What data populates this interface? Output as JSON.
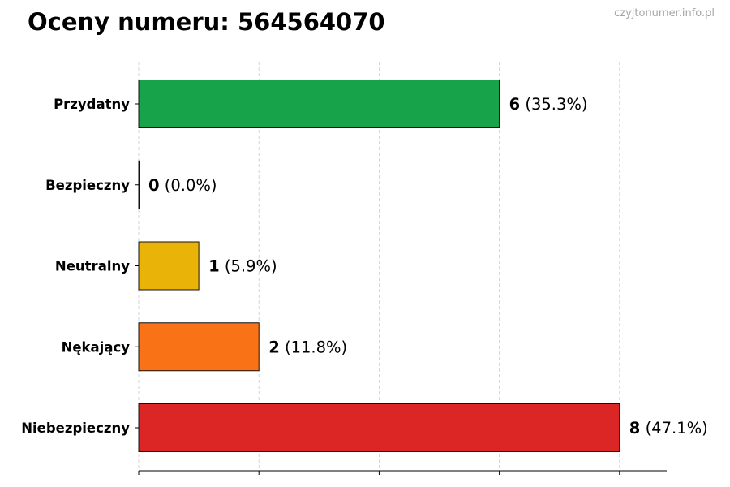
{
  "chart_title": "Oceny numeru: 564564070",
  "watermark": "czyjtonumer.info.pl",
  "chart_data": {
    "type": "bar",
    "orientation": "horizontal",
    "title": "Oceny numeru: 564564070",
    "xlabel": "",
    "ylabel": "",
    "categories": [
      "Przydatny",
      "Bezpieczny",
      "Neutralny",
      "Nękający",
      "Niebezpieczny"
    ],
    "values": [
      6,
      0,
      1,
      2,
      8
    ],
    "percent_labels": [
      "(35.3%)",
      "(0.0%)",
      "(5.9%)",
      "(11.8%)",
      "(47.1%)"
    ],
    "colors": [
      "#16a34a",
      "#16a34a",
      "#eab308",
      "#f97316",
      "#dc2626"
    ],
    "xlim": [
      0,
      8.8
    ],
    "x_ticks": [
      0,
      2,
      4,
      6,
      8
    ],
    "grid": "x-dashed",
    "legend": "none"
  }
}
